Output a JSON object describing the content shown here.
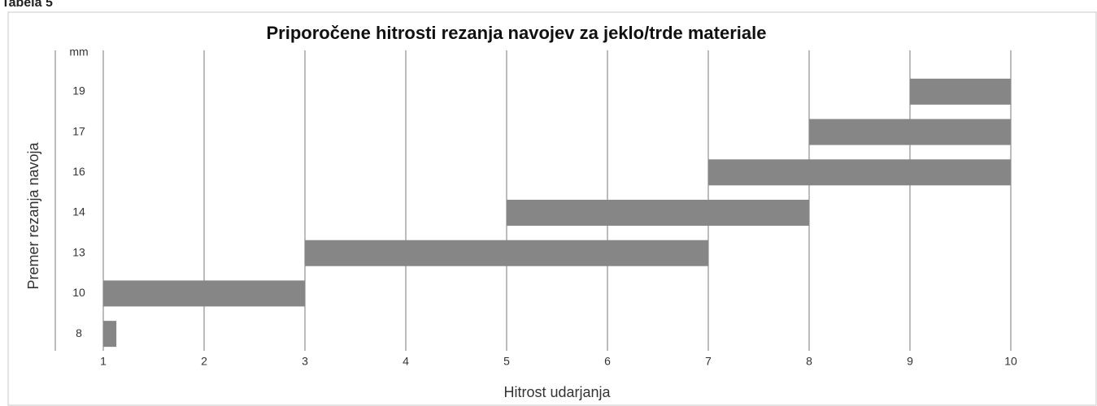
{
  "header": {
    "label": "Tabela 5"
  },
  "chart_data": {
    "type": "bar",
    "orientation": "horizontal",
    "title": "Priporočene hitrosti rezanja navojev za jeklo/trde materiale",
    "x_label": "Hitrost udarjanja",
    "y_label": "Premer rezanja navoja",
    "y_unit": "mm",
    "categories": [
      "8",
      "10",
      "13",
      "14",
      "16",
      "17",
      "19"
    ],
    "values": [
      [
        1,
        1.13
      ],
      [
        1,
        3
      ],
      [
        3,
        7
      ],
      [
        5,
        8
      ],
      [
        7,
        10
      ],
      [
        8,
        10
      ],
      [
        9,
        10
      ]
    ],
    "color": "#868686",
    "xlim": [
      0.5,
      10.5
    ],
    "xticks": [
      1,
      2,
      3,
      4,
      5,
      6,
      7,
      8,
      9,
      10
    ],
    "grid": true
  }
}
